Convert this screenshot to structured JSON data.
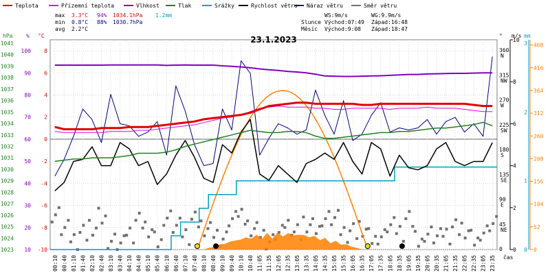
{
  "legend": [
    {
      "label": "Teplota",
      "color": "#e00000"
    },
    {
      "label": "Přízemní teplota",
      "color": "#e000e0"
    },
    {
      "label": "Vlhkost",
      "color": "#8000c0"
    },
    {
      "label": "Tlak",
      "color": "#208020"
    },
    {
      "label": "Srážky",
      "color": "#00a0c0"
    },
    {
      "label": "Rychlost větru",
      "color": "#000000"
    },
    {
      "label": "Náraz větru",
      "color": "#000080"
    },
    {
      "label": "Směr větru",
      "color": "#707070"
    }
  ],
  "stats": {
    "max": {
      "label": "max",
      "temp": "3.3°C",
      "hum": "94%",
      "press": "1034.1hPa",
      "rain": "1.2mm"
    },
    "min": {
      "label": "min",
      "temp": "0.8°C",
      "hum": "88%",
      "press": "1030.7hPa"
    },
    "avg": {
      "label": "avg",
      "temp": "2.2°C"
    }
  },
  "wind_info": {
    "ws": "WS:9m/s",
    "wg": "WG:9.9m/s"
  },
  "sun_info": {
    "label": "Slunce",
    "rise": "Východ:07:49",
    "set": "Západ:16:48"
  },
  "moon_info": {
    "label": "Měsíc",
    "rise": "Východ:9:08",
    "set": "Západ:18:47"
  },
  "title": "23.1.2023",
  "time_axis_label": "čas",
  "axes": {
    "hpa": {
      "unit": "hPa",
      "ticks": [
        "1041",
        "1040",
        "1039",
        "1038",
        "1037",
        "1036",
        "1035",
        "1034",
        "1033",
        "1032",
        "1031",
        "1030",
        "1029",
        "1028",
        "1027",
        "1026",
        "1025",
        "1024",
        "1023"
      ]
    },
    "pct": {
      "unit": "%",
      "ticks": [
        "100",
        "90",
        "80",
        "70",
        "60",
        "50",
        "40",
        "30",
        "20",
        "10"
      ]
    },
    "temp": {
      "unit": "°C",
      "ticks": [
        "8",
        "6",
        "4",
        "2",
        "0",
        "-2",
        "-4",
        "-6",
        "-8",
        "-10"
      ]
    },
    "dir": {
      "unit": "°",
      "ticks": [
        {
          "v": "360",
          "n": "N"
        },
        {
          "v": "315",
          "n": "NW"
        },
        {
          "v": "270",
          "n": "W"
        },
        {
          "v": "225",
          "n": "SW"
        },
        {
          "v": "180",
          "n": "S"
        },
        {
          "v": "135",
          "n": "SE"
        },
        {
          "v": "90",
          "n": "E"
        },
        {
          "v": "45",
          "n": "NE"
        },
        {
          "v": "0",
          "n": ""
        }
      ]
    },
    "ms": {
      "unit": "m/s",
      "ticks": [
        "10",
        "8",
        "6",
        "4",
        "2",
        "0"
      ]
    },
    "mm": {
      "unit": "mm",
      "ticks": [
        "3",
        "2",
        "1",
        "0"
      ]
    },
    "wm2": {
      "ticks": [
        "468",
        "416",
        "364",
        "312",
        "260",
        "208",
        "156",
        "104",
        "52",
        "0"
      ]
    }
  },
  "colors": {
    "temp": "#e00000",
    "ground": "#e000e0",
    "hum": "#8000c0",
    "press": "#208020",
    "rain": "#00a0c0",
    "wind": "#000000",
    "gust": "#000080",
    "dir": "#707070",
    "sun": "#ff8000",
    "wm2_axis": "#ff8000",
    "grid": "#d8d8d8"
  },
  "chart_data": {
    "type": "line",
    "x_labels": [
      "00:10",
      "00:40",
      "01:10",
      "01:40",
      "02:10",
      "02:40",
      "03:10",
      "03:40",
      "04:10",
      "04:40",
      "05:10",
      "05:40",
      "06:10",
      "06:40",
      "07:10",
      "07:40",
      "08:10",
      "08:40",
      "09:10",
      "09:40",
      "10:10",
      "10:40",
      "11:05",
      "11:35",
      "12:05",
      "12:35",
      "13:05",
      "13:35",
      "14:05",
      "14:35",
      "15:05",
      "15:35",
      "16:05",
      "16:35",
      "17:05",
      "17:35",
      "18:05",
      "18:35",
      "19:05",
      "19:35",
      "20:05",
      "20:35",
      "21:05",
      "21:35",
      "22:05",
      "22:35",
      "23:05",
      "23:35"
    ],
    "series": [
      {
        "name": "Teplota",
        "axis": "temp",
        "values": [
          1.1,
          0.9,
          0.9,
          0.9,
          0.9,
          1.0,
          1.0,
          1.0,
          1.1,
          1.1,
          1.1,
          1.2,
          1.3,
          1.4,
          1.5,
          1.6,
          1.8,
          1.9,
          2.0,
          2.1,
          2.2,
          2.4,
          2.7,
          3.0,
          3.1,
          3.2,
          3.3,
          3.3,
          3.2,
          3.2,
          3.2,
          3.2,
          3.2,
          3.1,
          3.1,
          3.2,
          3.2,
          3.2,
          3.2,
          3.2,
          3.2,
          3.2,
          3.2,
          3.2,
          3.2,
          3.1,
          3.0,
          3.0
        ]
      },
      {
        "name": "Přízemní teplota",
        "axis": "temp",
        "values": [
          0.7,
          0.6,
          0.6,
          0.6,
          0.6,
          0.6,
          0.7,
          0.7,
          0.7,
          0.8,
          0.8,
          0.9,
          1.0,
          1.1,
          1.2,
          1.3,
          1.5,
          1.7,
          1.9,
          2.0,
          2.2,
          2.5,
          2.8,
          2.9,
          3.0,
          2.9,
          2.9,
          2.9,
          2.8,
          2.8,
          2.7,
          2.7,
          2.8,
          2.8,
          2.8,
          2.8,
          2.7,
          2.8,
          2.8,
          2.8,
          2.9,
          2.8,
          2.8,
          2.8,
          2.7,
          2.6,
          2.5,
          2.5
        ]
      },
      {
        "name": "Vlhkost",
        "axis": "pct",
        "values": [
          93.5,
          93.5,
          93.5,
          93.5,
          93.5,
          93.5,
          93.6,
          93.6,
          93.6,
          93.6,
          93.6,
          93.6,
          93.4,
          93.5,
          93.6,
          93.5,
          93.5,
          93.5,
          93.2,
          93.0,
          92.7,
          92.3,
          91.8,
          91.4,
          91.1,
          90.7,
          90.4,
          90.0,
          89.4,
          88.6,
          88.5,
          88.4,
          88.4,
          88.5,
          88.6,
          88.7,
          88.9,
          89.1,
          89.3,
          89.3,
          89.5,
          89.6,
          89.7,
          89.8,
          89.8,
          89.9,
          90.0,
          90.0
        ]
      },
      {
        "name": "Tlak",
        "axis": "hpa",
        "values": [
          1030.7,
          1030.8,
          1030.9,
          1030.9,
          1031.0,
          1031.0,
          1031.0,
          1031.1,
          1031.2,
          1031.4,
          1031.4,
          1031.4,
          1031.5,
          1031.7,
          1032.0,
          1032.2,
          1032.4,
          1032.6,
          1032.8,
          1033.0,
          1033.2,
          1033.4,
          1033.3,
          1033.2,
          1033.2,
          1033.3,
          1033.3,
          1033.2,
          1032.9,
          1032.7,
          1032.7,
          1032.8,
          1032.9,
          1033.0,
          1033.1,
          1033.2,
          1033.2,
          1033.3,
          1033.3,
          1033.4,
          1033.5,
          1033.6,
          1033.6,
          1033.7,
          1033.8,
          1033.9,
          1034.1,
          1033.8
        ]
      },
      {
        "name": "Rychlost větru",
        "axis": "ms",
        "values": [
          2.8,
          3.2,
          4.2,
          4.3,
          4.9,
          4.0,
          4.0,
          5.1,
          4.8,
          4.0,
          4.2,
          3.1,
          3.6,
          4.5,
          5.2,
          4.4,
          3.4,
          3.2,
          5.0,
          4.6,
          5.6,
          6.2,
          3.6,
          3.3,
          4.0,
          3.6,
          3.2,
          4.1,
          4.3,
          4.6,
          4.3,
          5.1,
          4.2,
          3.6,
          5.1,
          4.8,
          3.5,
          4.5,
          3.9,
          3.8,
          4.0,
          4.8,
          5.1,
          4.2,
          4.0,
          4.2,
          4.2,
          5.1
        ]
      },
      {
        "name": "Náraz větru",
        "axis": "ms",
        "values": [
          3.5,
          4.3,
          5.4,
          6.7,
          6.2,
          5.1,
          7.4,
          6.0,
          5.9,
          5.4,
          5.6,
          6.1,
          4.5,
          7.8,
          6.6,
          5.0,
          4.0,
          4.1,
          6.7,
          5.7,
          9.0,
          8.4,
          4.5,
          5.3,
          6.0,
          5.8,
          5.5,
          5.7,
          7.6,
          6.4,
          5.5,
          7.1,
          5.2,
          5.5,
          6.4,
          7.0,
          5.6,
          5.8,
          5.7,
          5.8,
          6.2,
          5.5,
          6.1,
          6.3,
          5.6,
          6.0,
          5.4,
          9.2
        ]
      },
      {
        "name": "Srážky",
        "axis": "mm",
        "values": [
          0.0,
          0.0,
          0.0,
          0.0,
          0.0,
          0.0,
          0.0,
          0.0,
          0.0,
          0.0,
          0.0,
          0.0,
          0.0,
          0.2,
          0.4,
          0.4,
          0.6,
          0.8,
          0.8,
          0.8,
          1.0,
          1.0,
          1.0,
          1.0,
          1.0,
          1.0,
          1.0,
          1.0,
          1.0,
          1.0,
          1.0,
          1.0,
          1.0,
          1.0,
          1.0,
          1.0,
          1.0,
          1.2,
          1.2,
          1.2,
          1.2,
          1.2,
          1.2,
          1.2,
          1.2,
          1.2,
          1.2,
          1.2
        ]
      },
      {
        "name": "Směr větru",
        "axis": "dir",
        "values": [
          70,
          40,
          20,
          30,
          45,
          60,
          20,
          10,
          30,
          50,
          40,
          15,
          60,
          40,
          25,
          50,
          40,
          30,
          20,
          50,
          60,
          45,
          35,
          20,
          30,
          45,
          30,
          50,
          40,
          60,
          55,
          30,
          30,
          40,
          20,
          25,
          40,
          30,
          50,
          20,
          35,
          25,
          30,
          40,
          40,
          20,
          35,
          45
        ]
      }
    ],
    "sun_curve": {
      "axis": "wm2",
      "rise_index": 15.3,
      "set_index": 33.6,
      "peak": 364
    },
    "solar_radiation": {
      "axis": "wm2",
      "start_index": 16,
      "end_index": 33,
      "peak": 40
    },
    "y_ranges": {
      "temp": [
        -10,
        9
      ],
      "pct": [
        10,
        105
      ],
      "hpa": [
        1023,
        1041.3
      ],
      "dir": [
        0,
        380
      ],
      "ms": [
        0,
        10
      ],
      "mm": [
        0,
        3.05
      ],
      "wm2": [
        0,
        480
      ]
    }
  }
}
